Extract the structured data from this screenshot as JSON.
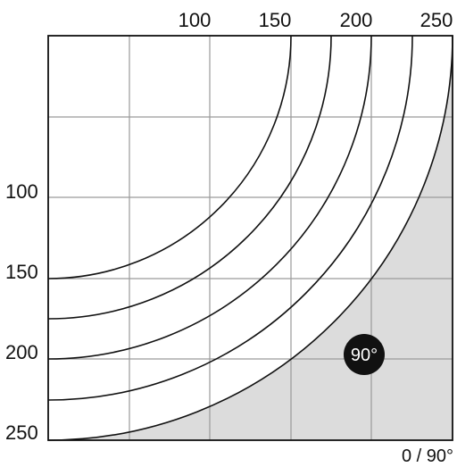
{
  "diagram": {
    "top_ticks": [
      "100",
      "150",
      "200",
      "250"
    ],
    "left_ticks": [
      "100",
      "150",
      "200",
      "250"
    ],
    "corner_label": "0 / 90°",
    "angle_badge": "90°",
    "arc_values": [
      150,
      175,
      200,
      225,
      250
    ],
    "colors": {
      "shaded_region": "#dcdcdc",
      "grid": "#9a9a9a",
      "arc": "#111111",
      "badge": "#111111"
    }
  }
}
